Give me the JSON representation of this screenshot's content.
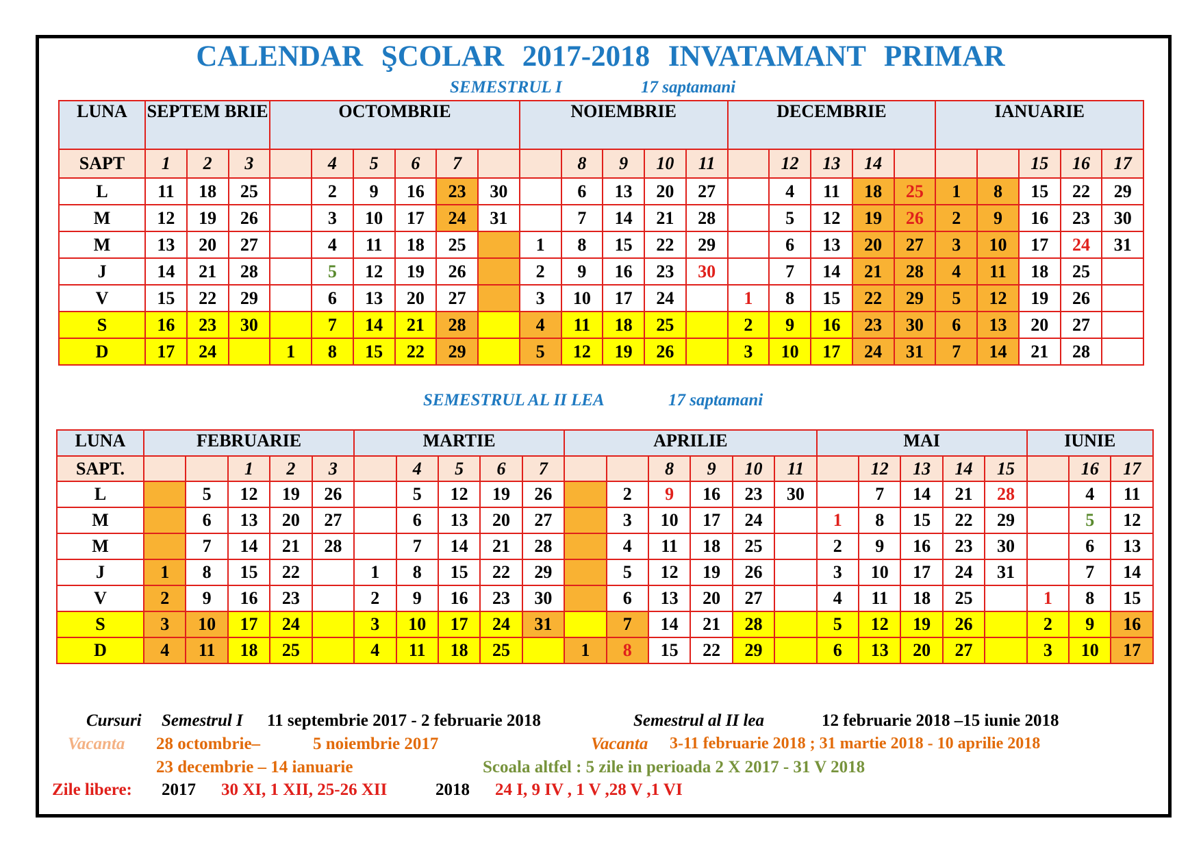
{
  "title": "CALENDAR ŞCOLAR 2017-2018 INVATAMANT PRIMAR",
  "semesters": [
    {
      "heading": "SEMESTRUL I",
      "weeks_note": "17 saptamani",
      "table": {
        "month_label": "LUNA",
        "week_label": "SAPT",
        "days": [
          "L",
          "M",
          "M",
          "J",
          "V",
          "S",
          "D"
        ],
        "months": [
          {
            "name": "SEPTEM BRIE",
            "weeks": [
              1,
              2,
              3
            ],
            "days": [
              [
                11,
                18,
                25
              ],
              [
                12,
                19,
                26
              ],
              [
                13,
                20,
                27
              ],
              [
                14,
                21,
                28
              ],
              [
                15,
                22,
                29
              ],
              [
                16,
                23,
                30
              ],
              [
                17,
                24,
                null
              ]
            ]
          },
          {
            "name": "OCTOMBRIE",
            "weeks": [
              null,
              4,
              5,
              6,
              7,
              null
            ],
            "days": [
              [
                null,
                2,
                9,
                16,
                23,
                30
              ],
              [
                null,
                3,
                10,
                17,
                24,
                31
              ],
              [
                null,
                4,
                11,
                18,
                25,
                null
              ],
              [
                null,
                5,
                12,
                19,
                26,
                null
              ],
              [
                null,
                6,
                13,
                20,
                27,
                null
              ],
              [
                null,
                7,
                14,
                21,
                28,
                null
              ],
              [
                1,
                8,
                15,
                22,
                29,
                null
              ]
            ]
          },
          {
            "name": "NOIEMBRIE",
            "weeks": [
              null,
              8,
              9,
              10,
              11
            ],
            "days": [
              [
                null,
                6,
                13,
                20,
                27
              ],
              [
                null,
                7,
                14,
                21,
                28
              ],
              [
                1,
                8,
                15,
                22,
                29
              ],
              [
                2,
                9,
                16,
                23,
                30
              ],
              [
                3,
                10,
                17,
                24,
                null
              ],
              [
                4,
                11,
                18,
                25,
                null
              ],
              [
                5,
                12,
                19,
                26,
                null
              ]
            ]
          },
          {
            "name": "DECEMBRIE",
            "weeks": [
              null,
              12,
              13,
              14,
              null
            ],
            "days": [
              [
                null,
                4,
                11,
                18,
                25
              ],
              [
                null,
                5,
                12,
                19,
                26
              ],
              [
                null,
                6,
                13,
                20,
                27
              ],
              [
                null,
                7,
                14,
                21,
                28
              ],
              [
                1,
                8,
                15,
                22,
                29
              ],
              [
                2,
                9,
                16,
                23,
                30
              ],
              [
                3,
                10,
                17,
                24,
                31
              ]
            ]
          },
          {
            "name": "IANUARIE",
            "weeks": [
              null,
              null,
              15,
              16,
              17
            ],
            "days": [
              [
                1,
                8,
                15,
                22,
                29
              ],
              [
                2,
                9,
                16,
                23,
                30
              ],
              [
                3,
                10,
                17,
                24,
                31
              ],
              [
                4,
                11,
                18,
                25,
                null
              ],
              [
                5,
                12,
                19,
                26,
                null
              ],
              [
                6,
                13,
                20,
                27,
                null
              ],
              [
                7,
                14,
                21,
                28,
                null
              ]
            ]
          }
        ]
      }
    },
    {
      "heading": "SEMESTRUL AL II LEA",
      "weeks_note": "17 saptamani",
      "table": {
        "month_label": "LUNA",
        "week_label": "SAPT.",
        "days": [
          "L",
          "M",
          "M",
          "J",
          "V",
          "S",
          "D"
        ],
        "months": [
          {
            "name": "FEBRUARIE",
            "weeks": [
              null,
              null,
              1,
              2,
              3
            ],
            "days": [
              [
                null,
                5,
                12,
                19,
                26
              ],
              [
                null,
                6,
                13,
                20,
                27
              ],
              [
                null,
                7,
                14,
                21,
                28
              ],
              [
                1,
                8,
                15,
                22,
                null
              ],
              [
                2,
                9,
                16,
                23,
                null
              ],
              [
                3,
                10,
                17,
                24,
                null
              ],
              [
                4,
                11,
                18,
                25,
                null
              ]
            ]
          },
          {
            "name": "MARTIE",
            "weeks": [
              null,
              4,
              5,
              6,
              7
            ],
            "days": [
              [
                null,
                5,
                12,
                19,
                26
              ],
              [
                null,
                6,
                13,
                20,
                27
              ],
              [
                null,
                7,
                14,
                21,
                28
              ],
              [
                1,
                8,
                15,
                22,
                29
              ],
              [
                2,
                9,
                16,
                23,
                30
              ],
              [
                3,
                10,
                17,
                24,
                31
              ],
              [
                4,
                11,
                18,
                25,
                null
              ]
            ]
          },
          {
            "name": "APRILIE",
            "weeks": [
              null,
              null,
              8,
              9,
              10,
              11
            ],
            "days": [
              [
                null,
                2,
                9,
                16,
                23,
                30
              ],
              [
                null,
                3,
                10,
                17,
                24,
                null
              ],
              [
                null,
                4,
                11,
                18,
                25,
                null
              ],
              [
                null,
                5,
                12,
                19,
                26,
                null
              ],
              [
                null,
                6,
                13,
                20,
                27,
                null
              ],
              [
                null,
                7,
                14,
                21,
                28,
                null
              ],
              [
                1,
                8,
                15,
                22,
                29,
                null
              ]
            ]
          },
          {
            "name": "MAI",
            "weeks": [
              null,
              12,
              13,
              14,
              15
            ],
            "days": [
              [
                null,
                7,
                14,
                21,
                28
              ],
              [
                1,
                8,
                15,
                22,
                29
              ],
              [
                2,
                9,
                16,
                23,
                30
              ],
              [
                3,
                10,
                17,
                24,
                31
              ],
              [
                4,
                11,
                18,
                25,
                null
              ],
              [
                5,
                12,
                19,
                26,
                null
              ],
              [
                6,
                13,
                20,
                27,
                null
              ]
            ]
          },
          {
            "name": "IUNIE",
            "weeks": [
              null,
              16,
              17
            ],
            "days": [
              [
                null,
                4,
                11
              ],
              [
                null,
                5,
                12
              ],
              [
                null,
                6,
                13
              ],
              [
                null,
                7,
                14
              ],
              [
                1,
                8,
                15
              ],
              [
                2,
                9,
                16
              ],
              [
                3,
                10,
                17
              ]
            ]
          }
        ]
      }
    }
  ],
  "footer": {
    "courses": {
      "label": "Cursuri",
      "sem1_label": "Semestrul I",
      "sem1_dates": "11 septembrie 2017 - 2 februarie 2018",
      "sem2_label": "Semestrul al II lea",
      "sem2_dates": "12 februarie 2018 –15 iunie 2018"
    },
    "vacation_sem1": {
      "label": "Vacanta",
      "autumn_start": "28 octombrie–",
      "autumn_end": "5 noiembrie 2017",
      "winter": "23 decembrie – 14 ianuarie"
    },
    "vacation_sem2": {
      "label": "Vacanta",
      "dates": "3-11 februarie 2018 ; 31 martie 2018 - 10 aprilie 2018"
    },
    "scoala_altfel": "Scoala altfel : 5 zile in perioada 2 X 2017 - 31 V 2018",
    "holidays": {
      "label": "Zile libere:",
      "year1": "2017",
      "dates1": "30 XI, 1 XII, 25-26 XII",
      "year2": "2018",
      "dates2": "24 I, 9 IV , 1 V ,28 V ,1 VI"
    }
  }
}
